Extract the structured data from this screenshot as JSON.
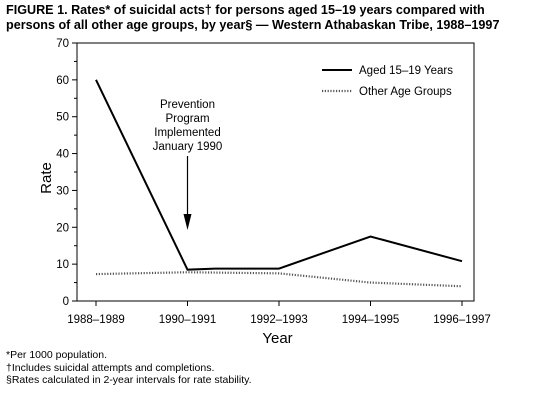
{
  "title_lines": [
    "FIGURE 1. Rates* of suicidal acts† for persons aged 15–19 years compared with",
    "persons of all other age groups, by year§ — Western Athabaskan Tribe, 1988–1997"
  ],
  "footnotes": [
    "*Per 1000 population.",
    "†Includes suicidal attempts and completions.",
    "§Rates calculated in 2-year intervals for rate stability."
  ],
  "annotation_lines": [
    "Prevention",
    "Program",
    "Implemented",
    "January 1990"
  ],
  "chart_data": {
    "type": "line",
    "categories": [
      "1988–1989",
      "1990–1991",
      "1992–1993",
      "1994–1995",
      "1996–1997"
    ],
    "xlabel": "Year",
    "ylabel": "Rate",
    "ylim": [
      0,
      70
    ],
    "yticks": [
      0,
      10,
      20,
      30,
      40,
      50,
      60,
      70
    ],
    "series": [
      {
        "name": "Aged 15–19 Years",
        "style": "solid",
        "points": [
          [
            0,
            60
          ],
          [
            1,
            8.5
          ],
          [
            1.3,
            8.8
          ],
          [
            2,
            8.8
          ],
          [
            3,
            17.5
          ],
          [
            4,
            10.8
          ]
        ]
      },
      {
        "name": "Other Age Groups",
        "style": "dotted",
        "points": [
          [
            0,
            7.3
          ],
          [
            1,
            7.8
          ],
          [
            2,
            7.5
          ],
          [
            3,
            5
          ],
          [
            4,
            4
          ]
        ]
      }
    ],
    "arrow_at": 1,
    "legend_position": "top-right",
    "grid": false
  }
}
